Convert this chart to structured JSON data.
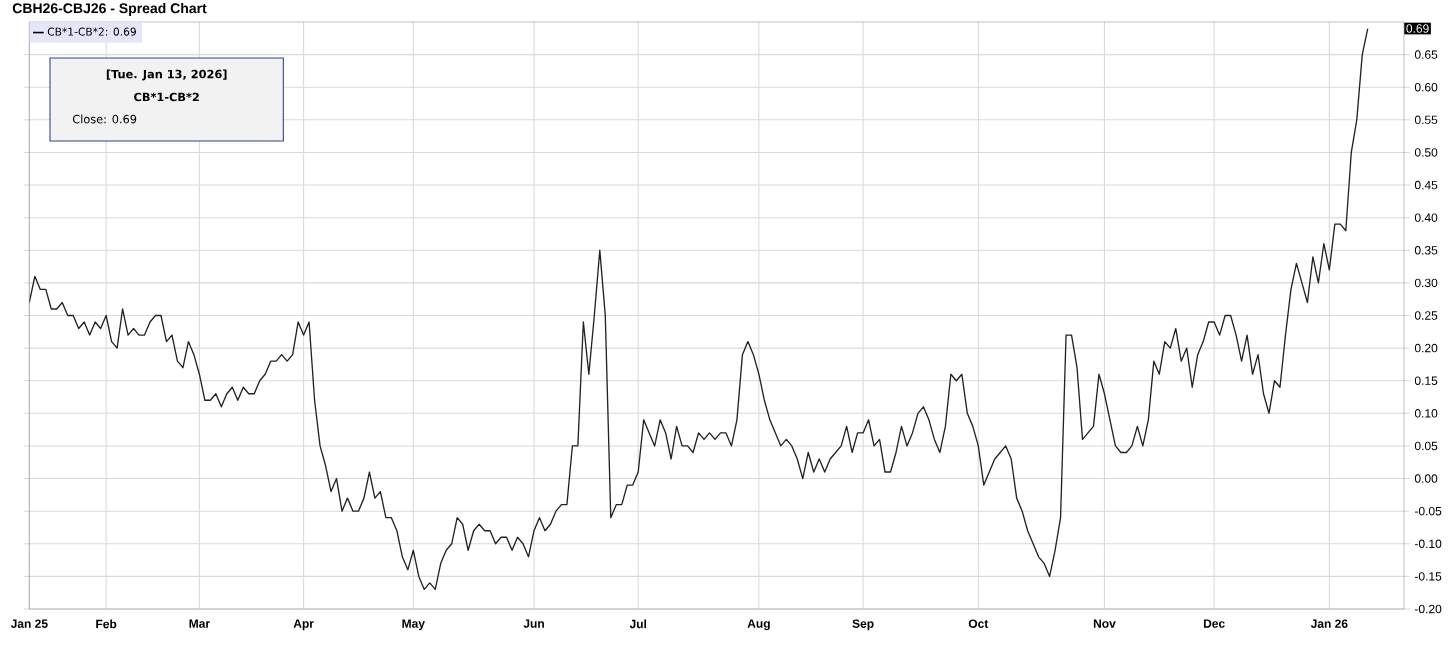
{
  "chart_data": {
    "type": "line",
    "title": "CBH26-CBJ26 - Spread Chart",
    "categories": [
      "Jan 25",
      null,
      null,
      null,
      null,
      null,
      null,
      null,
      null,
      null,
      null,
      null,
      null,
      null,
      "Feb",
      null,
      null,
      null,
      null,
      null,
      null,
      null,
      null,
      null,
      null,
      null,
      null,
      null,
      null,
      null,
      null,
      "Mar",
      null,
      null,
      null,
      null,
      null,
      null,
      null,
      null,
      null,
      null,
      null,
      null,
      null,
      null,
      null,
      null,
      null,
      null,
      "Apr",
      null,
      null,
      null,
      null,
      null,
      null,
      null,
      null,
      null,
      null,
      null,
      null,
      null,
      null,
      null,
      null,
      null,
      null,
      null,
      "May",
      null,
      null,
      null,
      null,
      null,
      null,
      null,
      null,
      null,
      null,
      null,
      null,
      null,
      null,
      null,
      null,
      null,
      null,
      null,
      null,
      null,
      "Jun",
      null,
      null,
      null,
      null,
      null,
      null,
      null,
      null,
      null,
      null,
      null,
      null,
      null,
      null,
      null,
      null,
      null,
      null,
      "Jul",
      null,
      null,
      null,
      null,
      null,
      null,
      null,
      null,
      null,
      null,
      null,
      null,
      null,
      null,
      null,
      null,
      null,
      null,
      null,
      null,
      null,
      "Aug",
      null,
      null,
      null,
      null,
      null,
      null,
      null,
      null,
      null,
      null,
      null,
      null,
      null,
      null,
      null,
      null,
      null,
      null,
      "Sep",
      null,
      null,
      null,
      null,
      null,
      null,
      null,
      null,
      null,
      null,
      null,
      null,
      null,
      null,
      null,
      null,
      null,
      null,
      null,
      null,
      "Oct",
      null,
      null,
      null,
      null,
      null,
      null,
      null,
      null,
      null,
      null,
      null,
      null,
      null,
      null,
      null,
      null,
      null,
      null,
      null,
      null,
      null,
      null,
      "Nov",
      null,
      null,
      null,
      null,
      null,
      null,
      null,
      null,
      null,
      null,
      null,
      null,
      null,
      null,
      null,
      null,
      null,
      null,
      null,
      "Dec",
      null,
      null,
      null,
      null,
      null,
      null,
      null,
      null,
      null,
      null,
      null,
      null,
      null,
      null,
      null,
      null,
      null,
      null,
      null,
      null,
      "Jan 26",
      null,
      null,
      null,
      null,
      null,
      null,
      null
    ],
    "series": [
      {
        "name": "CB*1-CB*2: 0.69",
        "color": "#222222",
        "values": [
          0.27,
          0.31,
          0.29,
          0.29,
          0.26,
          0.26,
          0.27,
          0.25,
          0.25,
          0.23,
          0.24,
          0.22,
          0.24,
          0.23,
          0.25,
          0.21,
          0.2,
          0.26,
          0.22,
          0.23,
          0.22,
          0.22,
          0.24,
          0.25,
          0.25,
          0.21,
          0.22,
          0.18,
          0.17,
          0.21,
          0.19,
          0.16,
          0.12,
          0.12,
          0.13,
          0.11,
          0.13,
          0.14,
          0.12,
          0.14,
          0.13,
          0.13,
          0.15,
          0.16,
          0.18,
          0.18,
          0.19,
          0.18,
          0.19,
          0.24,
          0.22,
          0.24,
          0.12,
          0.05,
          0.02,
          -0.02,
          0.0,
          -0.05,
          -0.03,
          -0.05,
          -0.05,
          -0.03,
          0.01,
          -0.03,
          -0.02,
          -0.06,
          -0.06,
          -0.08,
          -0.12,
          -0.14,
          -0.11,
          -0.15,
          -0.17,
          -0.16,
          -0.17,
          -0.13,
          -0.11,
          -0.1,
          -0.06,
          -0.07,
          -0.11,
          -0.08,
          -0.07,
          -0.08,
          -0.08,
          -0.1,
          -0.09,
          -0.09,
          -0.11,
          -0.09,
          -0.1,
          -0.12,
          -0.08,
          -0.06,
          -0.08,
          -0.07,
          -0.05,
          -0.04,
          -0.04,
          0.05,
          0.05,
          0.24,
          0.16,
          0.25,
          0.35,
          0.25,
          -0.06,
          -0.04,
          -0.04,
          -0.01,
          -0.01,
          0.01,
          0.09,
          0.07,
          0.05,
          0.09,
          0.07,
          0.03,
          0.08,
          0.05,
          0.05,
          0.04,
          0.07,
          0.06,
          0.07,
          0.06,
          0.07,
          0.07,
          0.05,
          0.09,
          0.19,
          0.21,
          0.19,
          0.16,
          0.12,
          0.09,
          0.07,
          0.05,
          0.06,
          0.05,
          0.03,
          0.0,
          0.04,
          0.01,
          0.03,
          0.01,
          0.03,
          0.04,
          0.05,
          0.08,
          0.04,
          0.07,
          0.07,
          0.09,
          0.05,
          0.06,
          0.01,
          0.01,
          0.04,
          0.08,
          0.05,
          0.07,
          0.1,
          0.11,
          0.09,
          0.06,
          0.04,
          0.08,
          0.16,
          0.15,
          0.16,
          0.1,
          0.08,
          0.05,
          -0.01,
          0.01,
          0.03,
          0.04,
          0.05,
          0.03,
          -0.03,
          -0.05,
          -0.08,
          -0.1,
          -0.12,
          -0.13,
          -0.15,
          -0.11,
          -0.06,
          0.22,
          0.22,
          0.17,
          0.06,
          0.07,
          0.08,
          0.16,
          0.13,
          0.09,
          0.05,
          0.04,
          0.04,
          0.05,
          0.08,
          0.05,
          0.09,
          0.18,
          0.16,
          0.21,
          0.2,
          0.23,
          0.18,
          0.2,
          0.14,
          0.19,
          0.21,
          0.24,
          0.24,
          0.22,
          0.25,
          0.25,
          0.22,
          0.18,
          0.22,
          0.16,
          0.19,
          0.13,
          0.1,
          0.15,
          0.14,
          0.22,
          0.29,
          0.33,
          0.3,
          0.27,
          0.34,
          0.3,
          0.36,
          0.32,
          0.39,
          0.39,
          0.38,
          0.5,
          0.55,
          0.65,
          0.69
        ]
      }
    ],
    "ylim": [
      -0.2,
      0.7
    ],
    "yticks": [
      {
        "value": -0.2,
        "label": "-0.20"
      },
      {
        "value": -0.15,
        "label": "-0.15"
      },
      {
        "value": -0.1,
        "label": "-0.10"
      },
      {
        "value": -0.05,
        "label": "-0.05"
      },
      {
        "value": 0,
        "label": "0.00"
      },
      {
        "value": 0.05,
        "label": "0.05"
      },
      {
        "value": 0.1,
        "label": "0.10"
      },
      {
        "value": 0.15,
        "label": "0.15"
      },
      {
        "value": 0.2,
        "label": "0.20"
      },
      {
        "value": 0.25,
        "label": "0.25"
      },
      {
        "value": 0.3,
        "label": "0.30"
      },
      {
        "value": 0.35,
        "label": "0.35"
      },
      {
        "value": 0.4,
        "label": "0.40"
      },
      {
        "value": 0.45,
        "label": "0.45"
      },
      {
        "value": 0.5,
        "label": "0.50"
      },
      {
        "value": 0.55,
        "label": "0.55"
      },
      {
        "value": 0.6,
        "label": "0.60"
      },
      {
        "value": 0.65,
        "label": "0.65"
      }
    ],
    "grid": true,
    "legend": "top left",
    "marker": "none",
    "line_style": "solid",
    "annotations": [
      "[Tue. Jan 13, 2026]",
      "CB*1-CB*2",
      "Close: 0.69",
      "0.69"
    ]
  }
}
